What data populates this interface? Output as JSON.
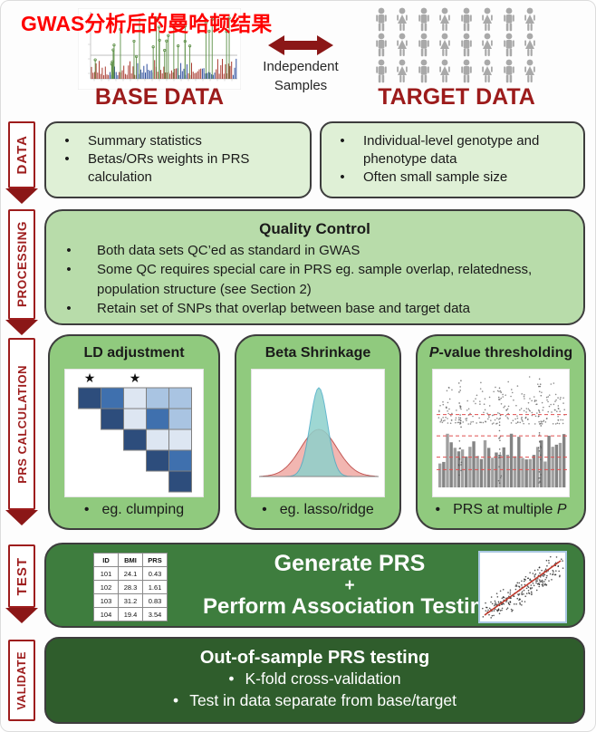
{
  "header": {
    "overlay_title": "GWAS分析后的曼哈顿结果",
    "overlay_color": "#fe0101",
    "base_label": "BASE DATA",
    "target_label": "TARGET DATA",
    "caption": [
      "Independent",
      "Samples"
    ],
    "label_color": "#9c1b1b",
    "arrow_color": "#8b1717",
    "person_grid": {
      "rows": 3,
      "cols": 8,
      "color": "#a9a9a9"
    }
  },
  "stages": {
    "data": {
      "label": "DATA"
    },
    "processing": {
      "label": "PROCESSING"
    },
    "prs": {
      "label": "PRS CALCULATION"
    },
    "test": {
      "label": "TEST"
    },
    "validate": {
      "label": "VALIDATE"
    }
  },
  "data_row": {
    "left_bullets": [
      "Summary statistics",
      "Betas/ORs weights in PRS calculation"
    ],
    "right_bullets": [
      "Individual-level genotype and phenotype data",
      "Often small sample size"
    ]
  },
  "processing_row": {
    "title": "Quality Control",
    "bullets": [
      "Both data sets QC’ed as standard in GWAS",
      "Some QC requires special care in PRS eg. sample overlap, relatedness, population structure (see Section 2)",
      "Retain set of SNPs that overlap between base and target data"
    ]
  },
  "prs_row": {
    "boxes": [
      {
        "title": "LD adjustment",
        "bullet": "eg. clumping"
      },
      {
        "title": "Beta Shrinkage",
        "bullet": "eg. lasso/ridge"
      },
      {
        "title_italic": "P",
        "title_rest": "-value thresholding",
        "bullet_prefix": "PRS at multiple ",
        "bullet_italic": "P"
      }
    ],
    "ld_matrix": {
      "star_cols": [
        0,
        2
      ],
      "palette": {
        "d": "#2d4d7c",
        "m": "#3f70ae",
        "l": "#a9c4e2",
        "vl": "#dde6f2"
      },
      "rows": [
        {
          "start": 0,
          "cells": [
            "d",
            "m",
            "vl",
            "l",
            "l"
          ]
        },
        {
          "start": 1,
          "cells": [
            "d",
            "vl",
            "m",
            "l"
          ]
        },
        {
          "start": 2,
          "cells": [
            "d",
            "vl",
            "vl"
          ]
        },
        {
          "start": 3,
          "cells": [
            "d",
            "m"
          ]
        },
        {
          "start": 4,
          "cells": [
            "d"
          ]
        }
      ]
    },
    "beta_colors": {
      "narrow_fill": "#8ed1cc",
      "narrow_stroke": "#4bacc6",
      "wide_fill": "#f2b3ad",
      "wide_stroke": "#c0504d"
    },
    "pvalue_plot": {
      "threshold_fractions": [
        0.36,
        0.53,
        0.7,
        0.8
      ],
      "threshold_color": "#e05050",
      "dot_colors": [
        "#8f8f8f",
        "#6f6f6f"
      ]
    }
  },
  "test_row": {
    "table": {
      "headers": [
        "ID",
        "BMI",
        "PRS"
      ],
      "rows": [
        [
          "101",
          "24.1",
          "0.43"
        ],
        [
          "102",
          "28.3",
          "1.61"
        ],
        [
          "103",
          "31.2",
          "0.83"
        ],
        [
          "104",
          "19.4",
          "3.54"
        ]
      ]
    },
    "line1": "Generate PRS",
    "line2": "+",
    "line3": "Perform Association Testing",
    "scatter_line_color": "#c0392b"
  },
  "validate_row": {
    "title": "Out-of-sample PRS testing",
    "bullets": [
      "K-fold cross-validation",
      "Test in data separate from base/target"
    ]
  },
  "colors": {
    "data_box": "#dff0d6",
    "processing_box": "#b8dcaa",
    "prs_box": "#90ca7e",
    "test_box": "#3e7d3e",
    "validate_box": "#2f5d2c",
    "ribbon_red": "#9e1d1d",
    "manhattan_red": "#a93b30",
    "manhattan_blue": "#30509e",
    "manhattan_green": "#5c8f46"
  }
}
